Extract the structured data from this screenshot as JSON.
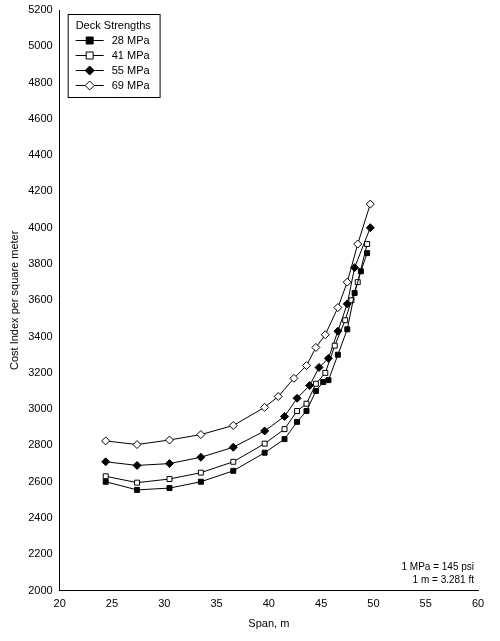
{
  "chart_data": {
    "type": "line",
    "x_label": "Span, m",
    "y_label": "Cost Index per square meter",
    "legend_title": "Deck Strengths",
    "legend": "upper left",
    "grid": false,
    "annotations": [
      "1 MPa = 145 psi",
      "1 m = 3.281 ft"
    ],
    "xlim": [
      20,
      60
    ],
    "xticks": [
      20,
      25,
      30,
      35,
      40,
      45,
      50,
      55,
      60
    ],
    "ylim": [
      2000,
      5200
    ],
    "yticks": [
      2000,
      2200,
      2400,
      2600,
      2800,
      3000,
      3200,
      3400,
      3600,
      3800,
      4000,
      4200,
      4400,
      4600,
      4800,
      5000,
      5200
    ],
    "series": [
      {
        "name": "28 MPa",
        "color": "#000000",
        "marker": "square",
        "line_style": "solid",
        "x": [
          24.4,
          27.4,
          30.5,
          33.5,
          36.6,
          39.6,
          41.5,
          42.7,
          43.6,
          44.5,
          45.2,
          45.7,
          46.6,
          47.5,
          48.2,
          48.8,
          49.4
        ],
        "values": [
          2600,
          2555,
          2565,
          2600,
          2660,
          2760,
          2835,
          2930,
          2990,
          3100,
          3150,
          3160,
          3300,
          3440,
          3640,
          3760,
          3860
        ]
      },
      {
        "name": "41 MPa",
        "color": "#000000",
        "marker": "square_open",
        "line_style": "solid",
        "x": [
          24.4,
          27.4,
          30.5,
          33.5,
          36.6,
          39.6,
          41.5,
          42.7,
          43.6,
          44.5,
          45.4,
          46.3,
          47.3,
          47.9,
          48.5,
          49.4
        ],
        "values": [
          2630,
          2595,
          2615,
          2650,
          2710,
          2810,
          2890,
          2990,
          3030,
          3140,
          3200,
          3350,
          3490,
          3600,
          3700,
          3910
        ]
      },
      {
        "name": "55 MPa",
        "color": "#000000",
        "marker": "diamond",
        "line_style": "solid",
        "x": [
          24.4,
          27.4,
          30.5,
          33.5,
          36.6,
          39.6,
          41.5,
          42.7,
          43.9,
          44.8,
          45.7,
          46.6,
          47.5,
          48.2,
          49.7
        ],
        "values": [
          2710,
          2690,
          2700,
          2735,
          2790,
          2880,
          2960,
          3060,
          3130,
          3230,
          3280,
          3430,
          3580,
          3780,
          4000
        ]
      },
      {
        "name": "69 MPa",
        "color": "#000000",
        "marker": "diamond_open",
        "line_style": "solid",
        "x": [
          24.4,
          27.4,
          30.5,
          33.5,
          36.6,
          39.6,
          40.9,
          42.4,
          43.6,
          44.5,
          45.4,
          46.6,
          47.5,
          48.5,
          49.7
        ],
        "values": [
          2825,
          2805,
          2830,
          2860,
          2910,
          3010,
          3070,
          3170,
          3240,
          3340,
          3410,
          3560,
          3700,
          3910,
          4130
        ]
      }
    ]
  }
}
